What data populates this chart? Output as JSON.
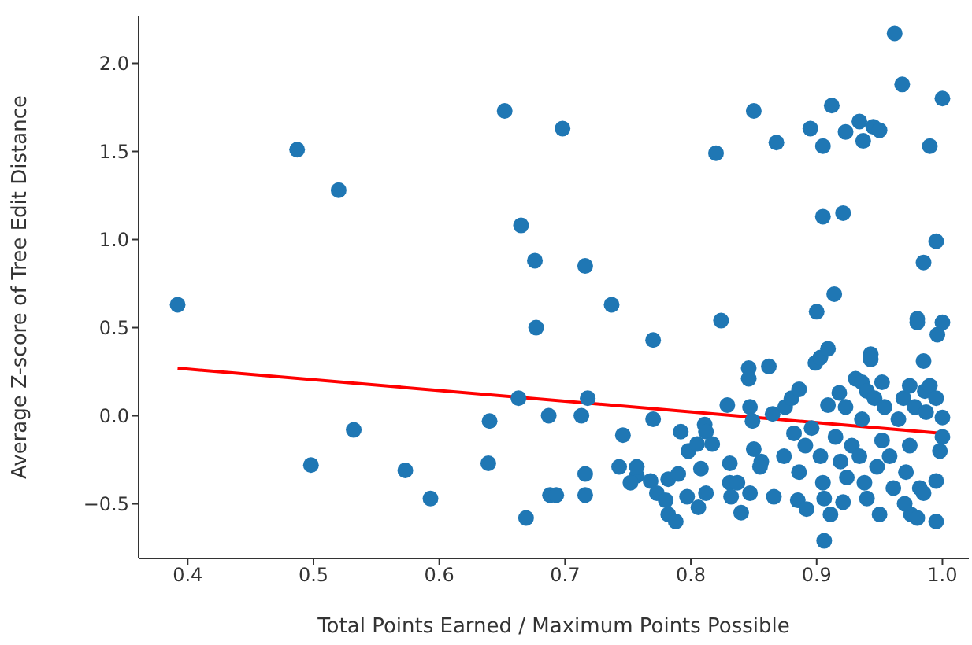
{
  "chart_data": {
    "type": "scatter",
    "xlabel": "Total Points Earned / Maximum Points Possible",
    "ylabel": "Average Z-score of Tree Edit Distance",
    "xlim": [
      0.361,
      1.021
    ],
    "ylim": [
      -0.81,
      2.27
    ],
    "xticks": [
      {
        "value": 0.4,
        "label": "0.4"
      },
      {
        "value": 0.5,
        "label": "0.5"
      },
      {
        "value": 0.6,
        "label": "0.6"
      },
      {
        "value": 0.7,
        "label": "0.7"
      },
      {
        "value": 0.8,
        "label": "0.8"
      },
      {
        "value": 0.9,
        "label": "0.9"
      },
      {
        "value": 1.0,
        "label": "1.0"
      }
    ],
    "yticks": [
      {
        "value": -0.5,
        "label": "−0.5"
      },
      {
        "value": 0,
        "label": "0.0"
      },
      {
        "value": 0.5,
        "label": "0.5"
      },
      {
        "value": 1.0,
        "label": "1.0"
      },
      {
        "value": 1.5,
        "label": "1.5"
      },
      {
        "value": 2.0,
        "label": "2.0"
      }
    ],
    "grid": false,
    "series": [
      {
        "marker": "circle",
        "color": "#1f77b4",
        "x": [
          0.392,
          0.487,
          0.52,
          0.498,
          0.532,
          0.573,
          0.593,
          0.639,
          0.64,
          0.652,
          0.665,
          0.676,
          0.677,
          0.663,
          0.669,
          0.687,
          0.688,
          0.693,
          0.698,
          0.716,
          0.713,
          0.718,
          0.716,
          0.716,
          0.737,
          0.746,
          0.743,
          0.757,
          0.77,
          0.824,
          0.77,
          0.757,
          0.752,
          0.768,
          0.773,
          0.78,
          0.782,
          0.788,
          0.782,
          0.79,
          0.792,
          0.798,
          0.805,
          0.811,
          0.812,
          0.817,
          0.808,
          0.797,
          0.806,
          0.812,
          0.829,
          0.831,
          0.831,
          0.832,
          0.84,
          0.837,
          0.847,
          0.846,
          0.846,
          0.862,
          0.847,
          0.85,
          0.849,
          0.856,
          0.855,
          0.866,
          0.865,
          0.875,
          0.88,
          0.886,
          0.874,
          0.882,
          0.886,
          0.885,
          0.892,
          0.891,
          0.899,
          0.903,
          0.909,
          0.9,
          0.914,
          0.896,
          0.903,
          0.905,
          0.906,
          0.911,
          0.906,
          0.909,
          0.918,
          0.923,
          0.915,
          0.919,
          0.924,
          0.921,
          0.928,
          0.931,
          0.936,
          0.943,
          0.943,
          0.94,
          0.946,
          0.952,
          0.954,
          0.936,
          0.934,
          0.938,
          0.94,
          0.948,
          0.952,
          0.958,
          0.961,
          0.95,
          0.965,
          0.969,
          0.974,
          0.978,
          0.974,
          0.971,
          0.975,
          0.982,
          0.986,
          0.987,
          0.985,
          0.98,
          0.98,
          0.985,
          0.996,
          1.0,
          0.99,
          0.995,
          1.0,
          1.0,
          0.998,
          0.995,
          0.985,
          0.98,
          0.995,
          0.97,
          0.995,
          0.962,
          0.968,
          1.0,
          0.912,
          0.85,
          0.82,
          0.868,
          0.895,
          0.905,
          0.923,
          0.934,
          0.945,
          0.937,
          0.95,
          0.99,
          0.905,
          0.921
        ],
        "values": [
          0.63,
          1.51,
          1.28,
          -0.28,
          -0.08,
          -0.31,
          -0.47,
          -0.27,
          -0.03,
          1.73,
          1.08,
          0.88,
          0.5,
          0.1,
          -0.58,
          0.0,
          -0.45,
          -0.45,
          1.63,
          0.85,
          0.0,
          0.1,
          -0.33,
          -0.45,
          0.63,
          -0.11,
          -0.29,
          -0.34,
          0.43,
          0.54,
          -0.02,
          -0.29,
          -0.38,
          -0.37,
          -0.44,
          -0.48,
          -0.56,
          -0.6,
          -0.36,
          -0.33,
          -0.09,
          -0.2,
          -0.16,
          -0.05,
          -0.09,
          -0.16,
          -0.3,
          -0.46,
          -0.52,
          -0.44,
          0.06,
          -0.27,
          -0.38,
          -0.46,
          -0.55,
          -0.38,
          -0.44,
          0.27,
          0.21,
          0.28,
          0.05,
          -0.19,
          -0.03,
          -0.26,
          -0.29,
          -0.46,
          0.01,
          0.05,
          0.1,
          0.15,
          -0.23,
          -0.1,
          -0.32,
          -0.48,
          -0.53,
          -0.17,
          0.3,
          0.33,
          0.38,
          0.59,
          0.69,
          -0.07,
          -0.23,
          -0.38,
          -0.47,
          -0.56,
          -0.71,
          0.06,
          0.13,
          0.05,
          -0.12,
          -0.26,
          -0.35,
          -0.49,
          -0.17,
          0.21,
          0.19,
          0.35,
          0.32,
          0.14,
          0.1,
          0.19,
          0.05,
          -0.02,
          -0.23,
          -0.38,
          -0.47,
          -0.29,
          -0.14,
          -0.23,
          -0.41,
          -0.56,
          -0.02,
          0.1,
          0.17,
          0.05,
          -0.17,
          -0.32,
          -0.56,
          -0.41,
          0.14,
          0.02,
          0.31,
          0.55,
          0.53,
          0.87,
          0.46,
          0.53,
          0.17,
          0.1,
          -0.01,
          -0.12,
          -0.2,
          -0.37,
          -0.44,
          -0.58,
          -0.6,
          -0.5,
          0.99,
          2.17,
          1.88,
          1.8,
          1.76,
          1.73,
          1.49,
          1.55,
          1.63,
          1.53,
          1.61,
          1.67,
          1.64,
          1.56,
          1.62,
          1.53,
          1.13,
          1.15
        ]
      },
      {
        "type": "line",
        "color": "#ff0000",
        "x": [
          0.392,
          1.0
        ],
        "values": [
          0.27,
          -0.1
        ]
      }
    ]
  }
}
